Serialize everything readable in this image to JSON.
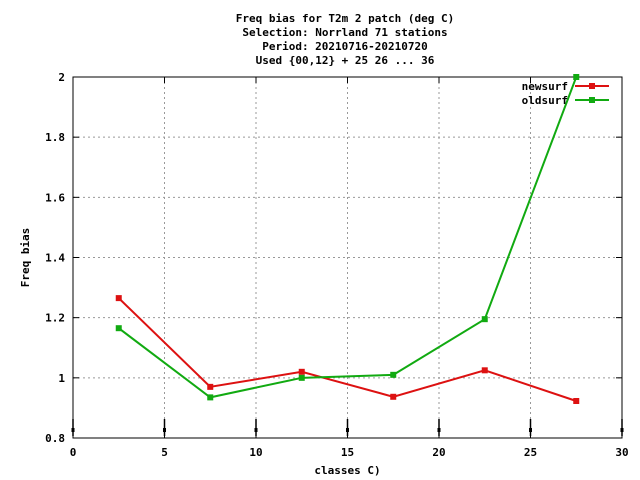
{
  "chart_data": {
    "type": "line",
    "title_lines": [
      "Freq bias  for T2m 2 patch (deg C)",
      "Selection: Norrland     71 stations",
      "Period: 20210716-20210720",
      "Used {00,12} + 25 26 ... 36"
    ],
    "xlabel": "classes C)",
    "ylabel": "Freq bias",
    "xlim": [
      0,
      30
    ],
    "ylim": [
      0.8,
      2.0
    ],
    "xticks": [
      0,
      5,
      10,
      15,
      20,
      25,
      30
    ],
    "xtick_labels": [
      "0",
      "5",
      "10",
      "15",
      "20",
      "25",
      "30"
    ],
    "yticks": [
      0.8,
      1.0,
      1.2,
      1.4,
      1.6,
      1.8,
      2.0
    ],
    "ytick_labels": [
      "0.8",
      "1",
      "1.2",
      "1.4",
      "1.6",
      "1.8",
      "2"
    ],
    "grid": true,
    "legend_position": "top-right",
    "count_markers_x": [
      0,
      5,
      10,
      15,
      20,
      25,
      30
    ],
    "series": [
      {
        "name": "newsurf",
        "color": "#dd1111",
        "x": [
          2.5,
          7.5,
          12.5,
          17.5,
          22.5,
          27.5
        ],
        "y": [
          1.265,
          0.97,
          1.02,
          0.937,
          1.025,
          0.923
        ]
      },
      {
        "name": "oldsurf",
        "color": "#11aa11",
        "x": [
          2.5,
          7.5,
          12.5,
          17.5,
          22.5,
          27.5
        ],
        "y": [
          1.165,
          0.935,
          1.0,
          1.01,
          1.195,
          2.0
        ]
      }
    ]
  }
}
